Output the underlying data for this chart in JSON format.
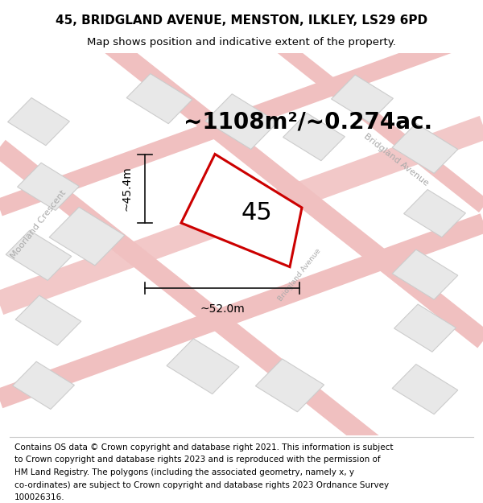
{
  "title_line1": "45, BRIDGLAND AVENUE, MENSTON, ILKLEY, LS29 6PD",
  "title_line2": "Map shows position and indicative extent of the property.",
  "area_text": "~1108m²/~0.274ac.",
  "label_45": "45",
  "dim_width": "~52.0m",
  "dim_height": "~45.4m",
  "map_bg": "#f0efee",
  "building_fill": "#e8e8e8",
  "building_edge": "#cccccc",
  "plot_color": "#cc0000",
  "dim_line_color": "#111111",
  "title_fontsize": 11,
  "subtitle_fontsize": 9.5,
  "area_fontsize": 20,
  "label_fontsize": 22,
  "dim_fontsize": 10,
  "footer_fontsize": 7.5,
  "street_label_fontsize": 8,
  "footer_lines": [
    "Contains OS data © Crown copyright and database right 2021. This information is subject",
    "to Crown copyright and database rights 2023 and is reproduced with the permission of",
    "HM Land Registry. The polygons (including the associated geometry, namely x, y",
    "co-ordinates) are subject to Crown copyright and database rights 2023 Ordnance Survey",
    "100026316."
  ]
}
